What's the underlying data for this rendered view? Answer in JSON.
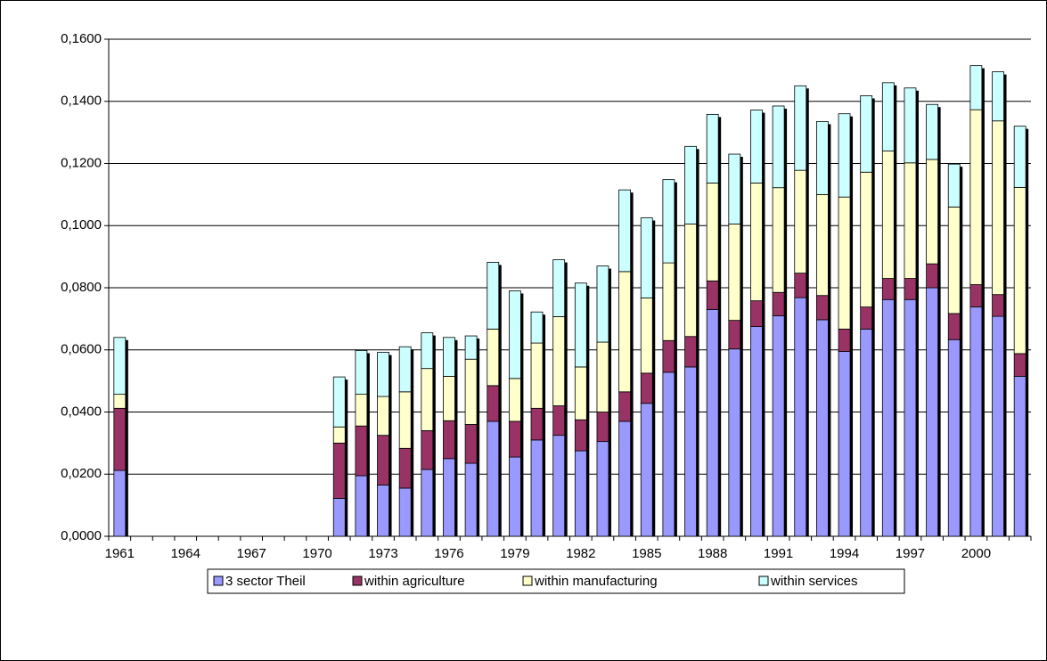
{
  "chart_data": {
    "type": "stacked-bar",
    "categories": [
      "1961",
      null,
      null,
      "1964",
      null,
      null,
      "1967",
      null,
      null,
      "1970",
      null,
      null,
      "1973",
      null,
      null,
      "1976",
      null,
      null,
      "1979",
      null,
      null,
      "1982",
      null,
      null,
      "1985",
      null,
      null,
      "1988",
      null,
      null,
      "1991",
      null,
      null,
      "1994",
      null,
      null,
      "1997",
      null,
      null,
      "2000",
      null,
      null
    ],
    "series": [
      {
        "name": "3 sector Theil",
        "color": "#9999ff",
        "values": [
          0.0212,
          null,
          null,
          null,
          null,
          null,
          null,
          null,
          null,
          null,
          0.0122,
          0.0195,
          0.0165,
          0.0155,
          0.0215,
          0.025,
          0.0235,
          0.037,
          0.0255,
          0.031,
          0.0325,
          0.0275,
          0.0305,
          0.037,
          0.0428,
          0.0528,
          0.0545,
          0.073,
          0.0603,
          0.0675,
          0.071,
          0.0768,
          0.0697,
          0.0595,
          0.0667,
          0.0762,
          0.0762,
          0.08,
          0.0633,
          0.0738,
          0.0708,
          0.0515
        ]
      },
      {
        "name": "within agriculture",
        "color": "#993366",
        "values": [
          0.02,
          null,
          null,
          null,
          null,
          null,
          null,
          null,
          null,
          null,
          0.0178,
          0.016,
          0.016,
          0.0128,
          0.0125,
          0.0122,
          0.0125,
          0.0115,
          0.0115,
          0.0102,
          0.0095,
          0.01,
          0.0095,
          0.0095,
          0.0097,
          0.0102,
          0.0098,
          0.0092,
          0.0092,
          0.0083,
          0.0075,
          0.0079,
          0.0078,
          0.0072,
          0.0071,
          0.0068,
          0.0068,
          0.0077,
          0.0084,
          0.0072,
          0.007,
          0.0073
        ]
      },
      {
        "name": "within manufacturing",
        "color": "#ffffcc",
        "values": [
          0.0045,
          null,
          null,
          null,
          null,
          null,
          null,
          null,
          null,
          null,
          0.0052,
          0.0102,
          0.0125,
          0.0182,
          0.02,
          0.0143,
          0.021,
          0.0182,
          0.0138,
          0.021,
          0.0287,
          0.017,
          0.0225,
          0.0387,
          0.0242,
          0.025,
          0.0362,
          0.0315,
          0.031,
          0.0379,
          0.0337,
          0.0331,
          0.0325,
          0.0425,
          0.0434,
          0.041,
          0.0372,
          0.0336,
          0.0343,
          0.0563,
          0.0559,
          0.0535
        ]
      },
      {
        "name": "within services",
        "color": "#ccffff",
        "values": [
          0.0183,
          null,
          null,
          null,
          null,
          null,
          null,
          null,
          null,
          null,
          0.0161,
          0.0141,
          0.0142,
          0.0145,
          0.0115,
          0.0125,
          0.0075,
          0.0215,
          0.0282,
          0.01,
          0.0183,
          0.027,
          0.0245,
          0.0263,
          0.0258,
          0.0268,
          0.025,
          0.0221,
          0.0225,
          0.0235,
          0.0263,
          0.0272,
          0.0235,
          0.0268,
          0.0246,
          0.022,
          0.0241,
          0.0177,
          0.0138,
          0.0142,
          0.0158,
          0.0197
        ]
      }
    ],
    "ylim": [
      0,
      0.16
    ],
    "yticks": [
      {
        "value": 0,
        "label": "0,0000"
      },
      {
        "value": 0.02,
        "label": "0,0200"
      },
      {
        "value": 0.04,
        "label": "0,0400"
      },
      {
        "value": 0.06,
        "label": "0,0600"
      },
      {
        "value": 0.08,
        "label": "0,0800"
      },
      {
        "value": 0.1,
        "label": "0,1000"
      },
      {
        "value": 0.12,
        "label": "0,1200"
      },
      {
        "value": 0.14,
        "label": "0,1400"
      },
      {
        "value": 0.16,
        "label": "0,1600"
      }
    ],
    "grid": true,
    "legend": "bottom"
  }
}
